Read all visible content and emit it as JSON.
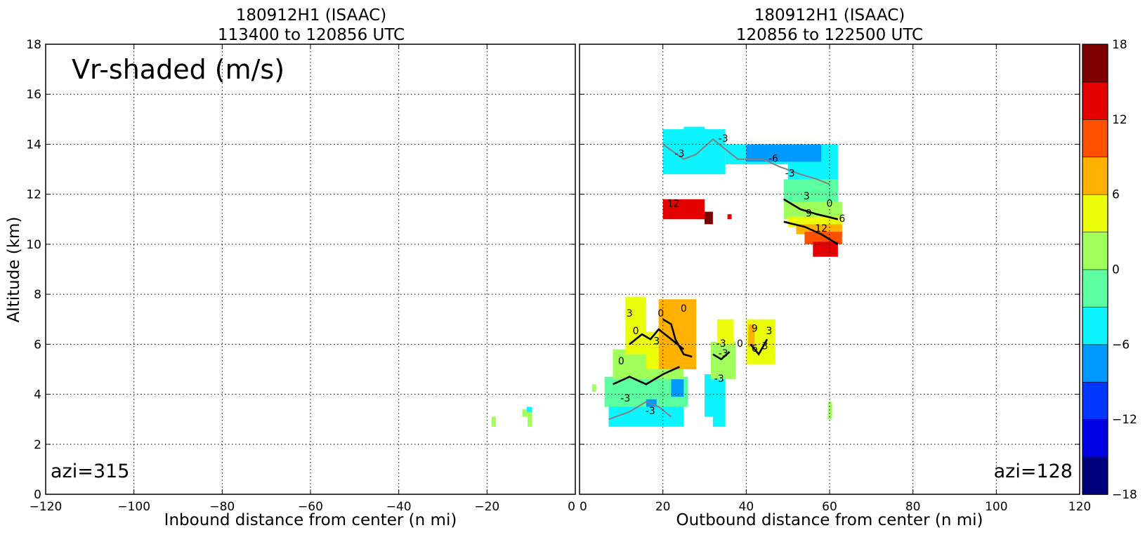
{
  "chart_data": [
    {
      "type": "heatmap",
      "title_line1": "180912H1 (ISAAC)",
      "title_line2": "113400 to 120856 UTC",
      "xlabel": "Inbound distance from center (n mi)",
      "ylabel": "Altitude (km)",
      "xlim": [
        -120,
        0
      ],
      "ylim": [
        0,
        18
      ],
      "xticks": [
        "−120",
        "−100",
        "−80",
        "−60",
        "−40",
        "−20",
        "0"
      ],
      "yticks": [
        "0",
        "2",
        "4",
        "6",
        "8",
        "10",
        "12",
        "14",
        "16",
        "18"
      ],
      "grid": true,
      "annotation_text": "Vr-shaded (m/s)",
      "azimuth_label": "azi=315",
      "cells": [
        {
          "x": [
            -19,
            -18
          ],
          "y": [
            2.7,
            3.1
          ],
          "value": 1.5
        },
        {
          "x": [
            -12,
            -9.8
          ],
          "y": [
            3.1,
            3.4
          ],
          "value": 0.5
        },
        {
          "x": [
            -11,
            -9.8
          ],
          "y": [
            3.3,
            3.5
          ],
          "value": -5
        },
        {
          "x": [
            -10.8,
            -9.8
          ],
          "y": [
            2.7,
            3.2
          ],
          "value": 1.5
        }
      ],
      "contours": []
    },
    {
      "type": "heatmap",
      "title_line1": "180912H1 (ISAAC)",
      "title_line2": "120856 to 122500 UTC",
      "xlabel": "Outbound distance from center (n mi)",
      "ylabel": "",
      "xlim": [
        0,
        120
      ],
      "ylim": [
        0,
        18
      ],
      "xticks": [
        "0",
        "20",
        "40",
        "60",
        "80",
        "100",
        "120"
      ],
      "grid": true,
      "azimuth_label": "azi=128",
      "cells": [
        {
          "x": [
            3,
            4
          ],
          "y": [
            4.1,
            4.4
          ],
          "value": 1.5
        },
        {
          "x": [
            7,
            25
          ],
          "y": [
            2.7,
            3.6
          ],
          "value": -4.5
        },
        {
          "x": [
            6,
            26
          ],
          "y": [
            3.5,
            4.7
          ],
          "value": -1.5
        },
        {
          "x": [
            8,
            25
          ],
          "y": [
            4.6,
            5.8
          ],
          "value": 1.5
        },
        {
          "x": [
            11,
            16
          ],
          "y": [
            5.6,
            7.9
          ],
          "value": 4.5
        },
        {
          "x": [
            16,
            19
          ],
          "y": [
            5,
            6.5
          ],
          "value": 4.5
        },
        {
          "x": [
            19,
            28
          ],
          "y": [
            5,
            7.8
          ],
          "value": 7.5
        },
        {
          "x": [
            22,
            25
          ],
          "y": [
            3.9,
            4.6
          ],
          "value": -7.5
        },
        {
          "x": [
            16,
            18.5
          ],
          "y": [
            3.5,
            3.8
          ],
          "value": -7.5
        },
        {
          "x": [
            30,
            33
          ],
          "y": [
            3.1,
            4.8
          ],
          "value": -4.5
        },
        {
          "x": [
            32,
            35
          ],
          "y": [
            2.7,
            4.6
          ],
          "value": -4.5
        },
        {
          "x": [
            31.5,
            37.5
          ],
          "y": [
            4.6,
            6.1
          ],
          "value": 1.5
        },
        {
          "x": [
            33,
            37
          ],
          "y": [
            6,
            7
          ],
          "value": 4.5
        },
        {
          "x": [
            40,
            47
          ],
          "y": [
            5.2,
            7
          ],
          "value": 4.5
        },
        {
          "x": [
            40.5,
            42
          ],
          "y": [
            5.9,
            6.8
          ],
          "value": 7.5
        },
        {
          "x": [
            59.6,
            60.6
          ],
          "y": [
            3,
            3.7
          ],
          "value": 1.5
        },
        {
          "x": [
            20,
            35
          ],
          "y": [
            12.8,
            14.6
          ],
          "value": -4.5
        },
        {
          "x": [
            25,
            30
          ],
          "y": [
            14.3,
            14.7
          ],
          "value": -4.5
        },
        {
          "x": [
            35,
            50
          ],
          "y": [
            13.2,
            14
          ],
          "value": -4.5
        },
        {
          "x": [
            50,
            62
          ],
          "y": [
            11.6,
            14
          ],
          "value": -4.5
        },
        {
          "x": [
            40,
            58
          ],
          "y": [
            13.3,
            14
          ],
          "value": -7.5
        },
        {
          "x": [
            49,
            62
          ],
          "y": [
            11.6,
            12.6
          ],
          "value": -1.5
        },
        {
          "x": [
            49,
            63
          ],
          "y": [
            11,
            11.7
          ],
          "value": 1.5
        },
        {
          "x": [
            50,
            63
          ],
          "y": [
            10.7,
            11.1
          ],
          "value": 4.5
        },
        {
          "x": [
            52,
            63
          ],
          "y": [
            10.4,
            10.8
          ],
          "value": 7.5
        },
        {
          "x": [
            54,
            63
          ],
          "y": [
            10,
            10.5
          ],
          "value": 10.5
        },
        {
          "x": [
            56,
            62
          ],
          "y": [
            9.5,
            10.1
          ],
          "value": 13.5
        },
        {
          "x": [
            20,
            30
          ],
          "y": [
            11,
            11.8
          ],
          "value": 13.5
        },
        {
          "x": [
            30,
            32
          ],
          "y": [
            10.8,
            11.3
          ],
          "value": 16.5
        },
        {
          "x": [
            35.5,
            36.5
          ],
          "y": [
            11,
            11.2
          ],
          "value": 13.5
        }
      ],
      "contours": [
        {
          "level": "-3",
          "points": [
            [
              20,
              14
            ],
            [
              25,
              13.4
            ],
            [
              28,
              13.6
            ],
            [
              32,
              14.2
            ],
            [
              38,
              13.4
            ],
            [
              44,
              13.4
            ],
            [
              48,
              13.1
            ],
            [
              53,
              12.8
            ],
            [
              57,
              12.6
            ],
            [
              60,
              12.4
            ]
          ]
        },
        {
          "level": "0",
          "points": [
            [
              49,
              11.8
            ],
            [
              53,
              11.4
            ],
            [
              57,
              11.2
            ],
            [
              62,
              11
            ]
          ]
        },
        {
          "level": "6",
          "points": [
            [
              49,
              10.9
            ],
            [
              54,
              10.7
            ],
            [
              58,
              10.4
            ],
            [
              62,
              10
            ]
          ]
        },
        {
          "level": "-3",
          "points": [
            [
              7,
              3
            ],
            [
              12,
              3.3
            ],
            [
              16,
              3.7
            ],
            [
              19,
              3.5
            ],
            [
              22,
              3.1
            ]
          ]
        },
        {
          "level": "0",
          "points": [
            [
              8,
              4.4
            ],
            [
              12,
              4.7
            ],
            [
              16,
              4.4
            ],
            [
              20,
              4.8
            ],
            [
              24,
              5.1
            ]
          ]
        },
        {
          "level": "3",
          "points": [
            [
              12,
              6
            ],
            [
              15,
              6.4
            ],
            [
              17,
              6.2
            ],
            [
              19,
              6.6
            ],
            [
              22,
              6.2
            ],
            [
              25,
              5.8
            ]
          ]
        },
        {
          "level": "6",
          "points": [
            [
              20,
              7
            ],
            [
              22,
              6.8
            ],
            [
              23,
              6.2
            ],
            [
              25,
              5.6
            ],
            [
              27,
              5.5
            ]
          ]
        },
        {
          "level": "0",
          "points": [
            [
              32,
              5.6
            ],
            [
              34,
              5.4
            ],
            [
              36,
              5.7
            ]
          ]
        },
        {
          "level": "3",
          "points": [
            [
              41,
              6
            ],
            [
              43,
              5.6
            ],
            [
              45,
              6.2
            ]
          ]
        }
      ],
      "contour_labels": [
        {
          "x": 24,
          "y": 13.5,
          "text": "-3"
        },
        {
          "x": 34.5,
          "y": 14.1,
          "text": "-3"
        },
        {
          "x": 46.5,
          "y": 13.3,
          "text": "-6"
        },
        {
          "x": 50.5,
          "y": 12.7,
          "text": "-3"
        },
        {
          "x": 54.5,
          "y": 11.8,
          "text": "3"
        },
        {
          "x": 60,
          "y": 11.5,
          "text": "0"
        },
        {
          "x": 55,
          "y": 11.1,
          "text": "9"
        },
        {
          "x": 63,
          "y": 10.9,
          "text": "6"
        },
        {
          "x": 58,
          "y": 10.5,
          "text": "12"
        },
        {
          "x": 22.5,
          "y": 11.5,
          "text": "12"
        },
        {
          "x": 12,
          "y": 7.1,
          "text": "3"
        },
        {
          "x": 13.5,
          "y": 6.4,
          "text": "0"
        },
        {
          "x": 19.5,
          "y": 7.1,
          "text": "0"
        },
        {
          "x": 25,
          "y": 7.3,
          "text": "0"
        },
        {
          "x": 18.5,
          "y": 6,
          "text": "3"
        },
        {
          "x": 10,
          "y": 5.2,
          "text": "0"
        },
        {
          "x": 11,
          "y": 3.7,
          "text": "-3"
        },
        {
          "x": 17,
          "y": 3.2,
          "text": "-3"
        },
        {
          "x": 34,
          "y": 5.9,
          "text": "-3"
        },
        {
          "x": 34.5,
          "y": 5.5,
          "text": "-3"
        },
        {
          "x": 38.5,
          "y": 5.9,
          "text": "0"
        },
        {
          "x": 33.5,
          "y": 4.5,
          "text": "-3"
        },
        {
          "x": 42,
          "y": 6.5,
          "text": "9"
        },
        {
          "x": 45.5,
          "y": 6.4,
          "text": "3"
        },
        {
          "x": 44.5,
          "y": 5.8,
          "text": "3"
        },
        {
          "x": 42,
          "y": 5.7,
          "text": "6"
        }
      ]
    }
  ],
  "colorbar": {
    "min": -18,
    "max": 18,
    "step": 3,
    "tick_values": [
      -18,
      -12,
      -6,
      0,
      6,
      12,
      18
    ],
    "tick_labels": [
      "−18",
      "−12",
      "−6",
      "0",
      "6",
      "12",
      "18"
    ],
    "colors": [
      "#00007f",
      "#0000e5",
      "#0036ff",
      "#0099ff",
      "#0cf4ff",
      "#5bffa0",
      "#a0ff5b",
      "#ecff0a",
      "#ffb000",
      "#ff5000",
      "#e50000",
      "#7f0000"
    ]
  },
  "colors": {
    "contour_negative": "#808080",
    "contour_positive": "#000000",
    "grid": "#000000"
  }
}
